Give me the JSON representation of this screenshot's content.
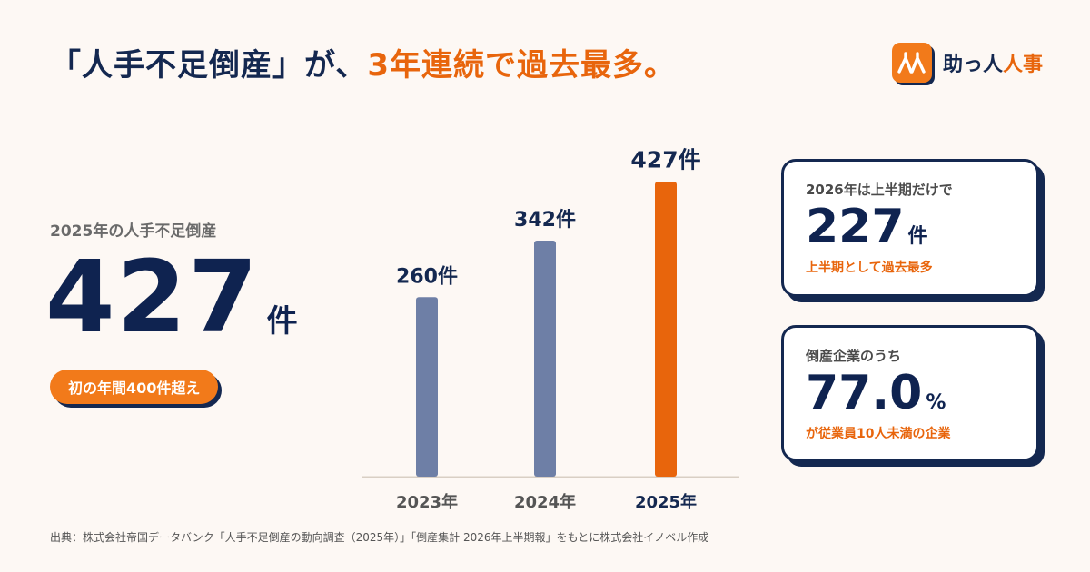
{
  "headline": {
    "part1": "「人手不足倒産」が、",
    "part2": "3年連続で過去最多。"
  },
  "logo": {
    "mark": "人人",
    "text1": "助っ人",
    "text2": "人事"
  },
  "summary": {
    "label": "2025年の人手不足倒産",
    "value": "427",
    "unit": "件",
    "badge": "初の年間400件超え"
  },
  "chart_data": {
    "type": "bar",
    "categories": [
      "2023年",
      "2024年",
      "2025年"
    ],
    "values": [
      260,
      342,
      427
    ],
    "data_labels": [
      "260件",
      "342件",
      "427件"
    ],
    "unit": "件",
    "ylim": [
      0,
      480
    ],
    "grid": false,
    "highlight_index": 2,
    "colors": {
      "normal": "#6e7fa6",
      "highlight": "#e8650c",
      "axis": "#d9cfc4",
      "label": "#142850"
    }
  },
  "cards": [
    {
      "label": "2026年は上半期だけで",
      "value": "227",
      "unit": "件",
      "sub": "上半期として過去最多"
    },
    {
      "label": "倒産企業のうち",
      "value": "77.0",
      "unit": "%",
      "sub": "が従業員10人未満の企業"
    }
  ],
  "source": "出典：株式会社帝国データバンク「人手不足倒産の動向調査（2025年）」「倒産集計 2026年上半期報」をもとに株式会社イノベル作成",
  "colors": {
    "navy": "#142850",
    "orange": "#e8650c",
    "background": "#fdf8f4"
  }
}
